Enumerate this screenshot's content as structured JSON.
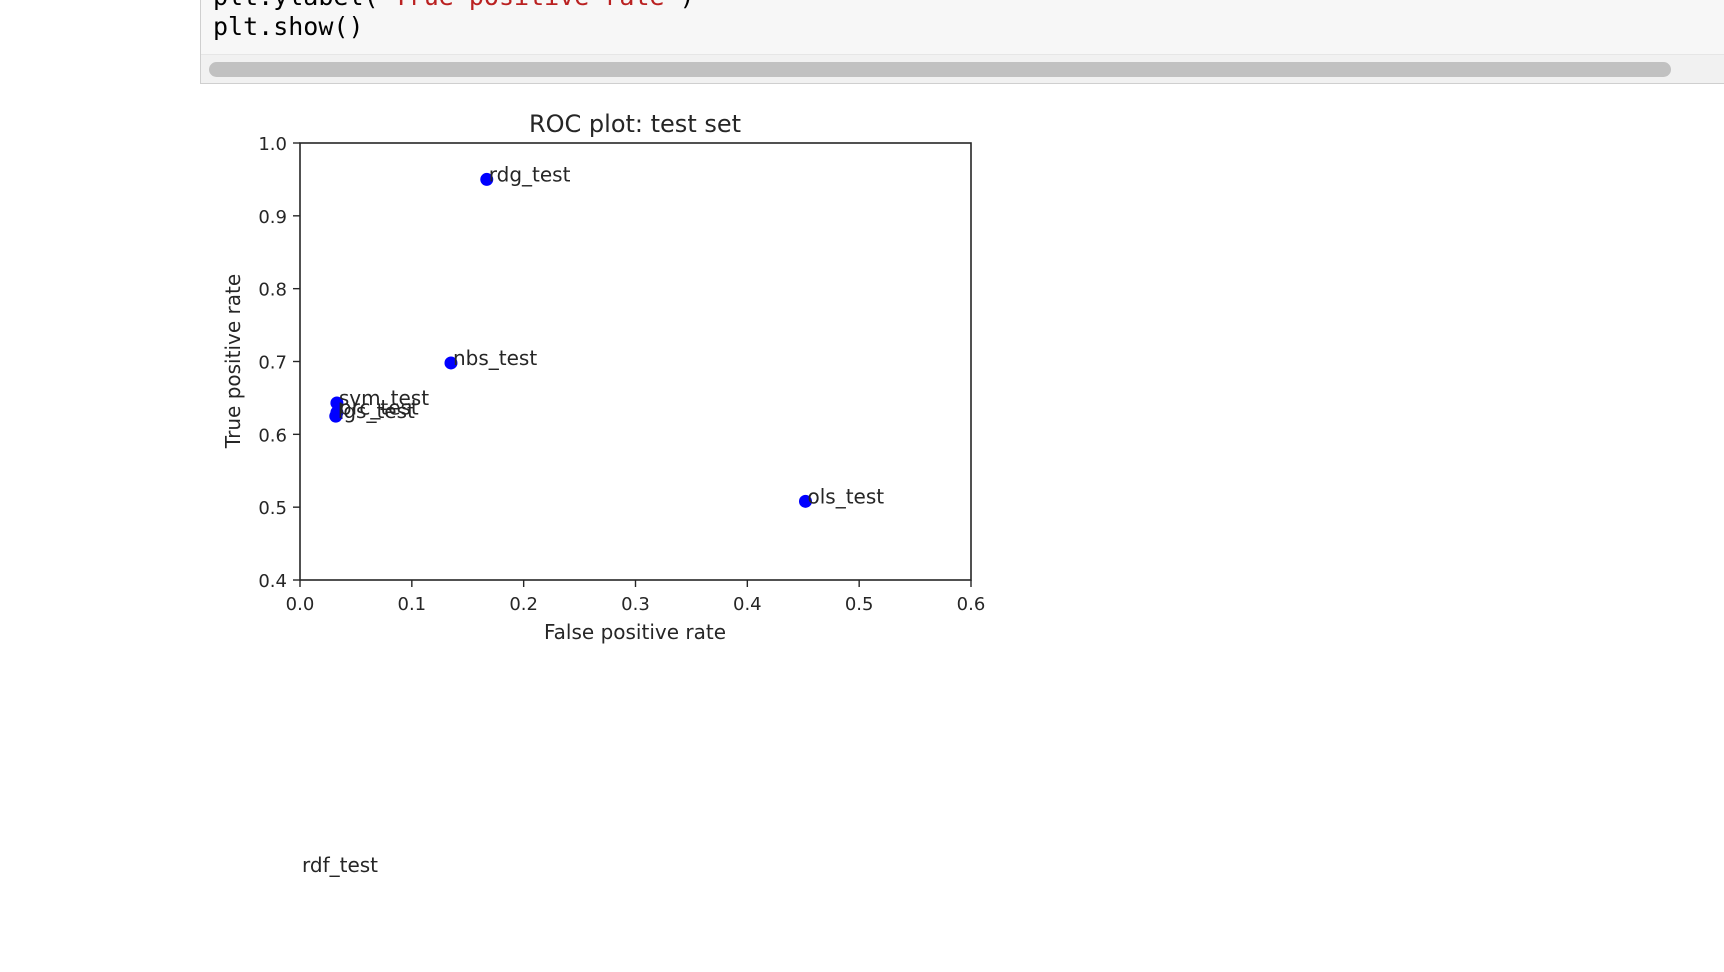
{
  "code_cell": {
    "line1_prefix": "plt.ylabel(",
    "line1_string": "'True positive rate'",
    "line1_suffix": ")",
    "line2": "plt.show()"
  },
  "chart_data": {
    "type": "scatter",
    "title": "ROC plot: test set",
    "xlabel": "False positive rate",
    "ylabel": "True positive rate",
    "xlim": [
      0.0,
      0.6
    ],
    "ylim": [
      0.4,
      1.0
    ],
    "xticks": [
      "0.0",
      "0.1",
      "0.2",
      "0.3",
      "0.4",
      "0.5",
      "0.6"
    ],
    "yticks": [
      "0.4",
      "0.5",
      "0.6",
      "0.7",
      "0.8",
      "0.9",
      "1.0"
    ],
    "grid": false,
    "marker_color": "#0000ff",
    "points": [
      {
        "label": "rdg_test",
        "x": 0.167,
        "y": 0.95
      },
      {
        "label": "nbs_test",
        "x": 0.135,
        "y": 0.698
      },
      {
        "label": "svm_test",
        "x": 0.033,
        "y": 0.643
      },
      {
        "label": "prc_test",
        "x": 0.033,
        "y": 0.63
      },
      {
        "label": "lgs_test",
        "x": 0.032,
        "y": 0.625
      },
      {
        "label": "ols_test",
        "x": 0.452,
        "y": 0.508
      }
    ],
    "outside_label": "rdf_test"
  }
}
